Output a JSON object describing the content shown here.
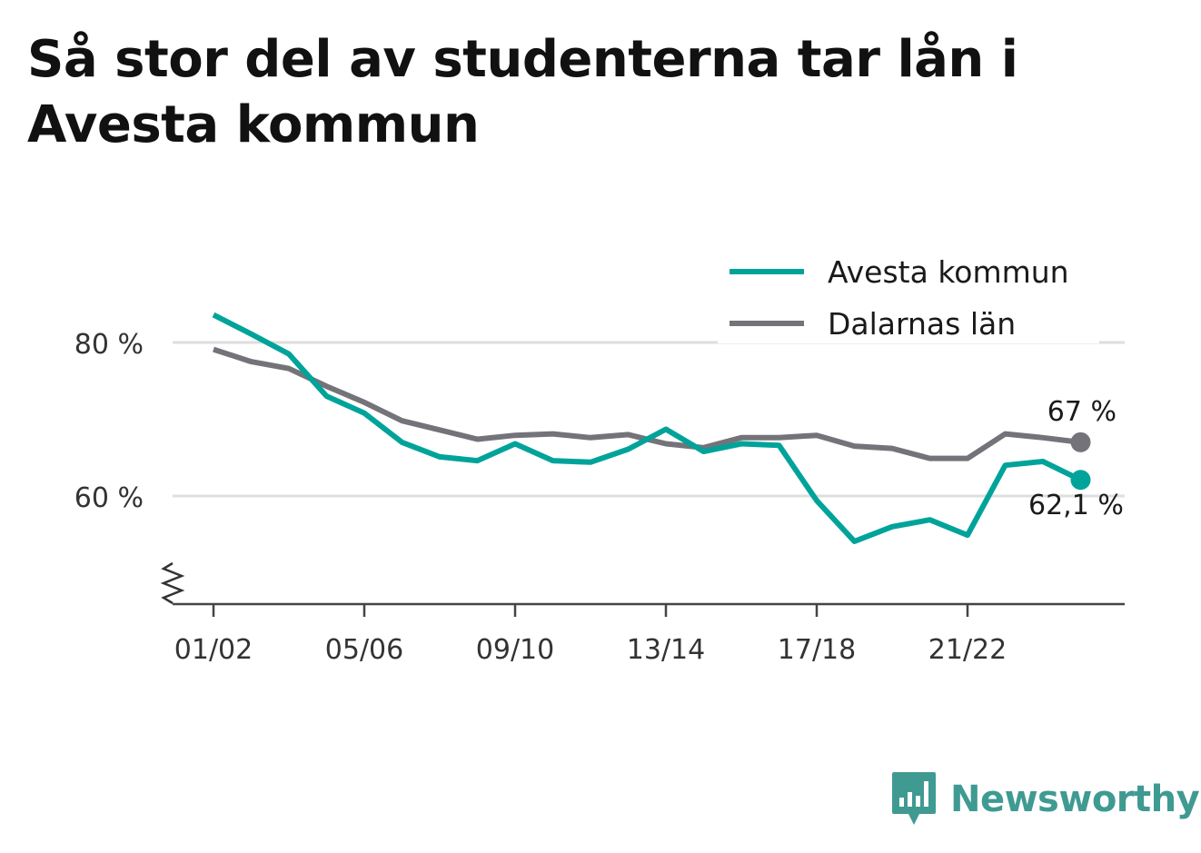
{
  "title": "Så stor del av studenterna tar lån i Avesta kommun",
  "brand": {
    "name": "Newsworthy",
    "color": "#3f9a92"
  },
  "chart_data": {
    "type": "line",
    "title": "Så stor del av studenterna tar lån i Avesta kommun",
    "xlabel": "",
    "ylabel": "",
    "x": [
      "01/02",
      "02/03",
      "03/04",
      "04/05",
      "05/06",
      "06/07",
      "07/08",
      "08/09",
      "09/10",
      "10/11",
      "11/12",
      "12/13",
      "13/14",
      "14/15",
      "15/16",
      "16/17",
      "17/18",
      "18/19",
      "19/20",
      "20/21",
      "21/22",
      "22/23",
      "23/24",
      "24/25"
    ],
    "x_tick_labels": [
      "01/02",
      "05/06",
      "09/10",
      "13/14",
      "17/18",
      "21/22"
    ],
    "y_ticks": [
      60,
      80
    ],
    "y_tick_format": "{v} %",
    "ylim": [
      46,
      88
    ],
    "y_axis_break": true,
    "grid": "horizontal",
    "legend_position": "top-right",
    "series": [
      {
        "name": "Avesta kommun",
        "color": "#00a39a",
        "values": [
          83.6,
          81.1,
          78.5,
          73.0,
          70.8,
          67.0,
          65.1,
          64.6,
          66.8,
          64.6,
          64.4,
          66.1,
          68.7,
          65.8,
          66.8,
          66.6,
          59.4,
          54.1,
          56.0,
          56.9,
          54.9,
          64.0,
          64.5,
          62.1
        ],
        "end_label": "62,1 %"
      },
      {
        "name": "Dalarnas län",
        "color": "#747379",
        "values": [
          79.1,
          77.5,
          76.6,
          74.3,
          72.2,
          69.8,
          68.6,
          67.4,
          67.9,
          68.1,
          67.6,
          68.0,
          66.8,
          66.3,
          67.6,
          67.6,
          67.9,
          66.5,
          66.2,
          64.9,
          64.9,
          68.1,
          67.6,
          67.0
        ],
        "end_label": "67 %"
      }
    ]
  }
}
